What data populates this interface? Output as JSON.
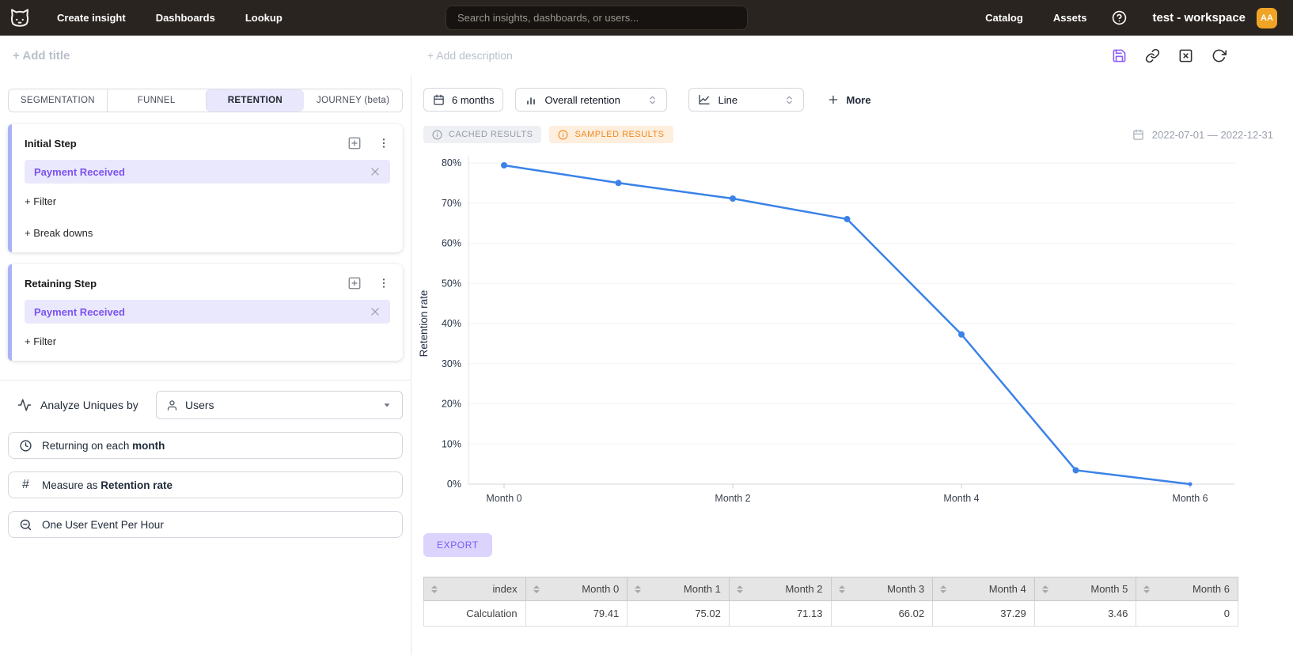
{
  "topnav": {
    "nav_left": [
      "Create insight",
      "Dashboards",
      "Lookup"
    ],
    "search_placeholder": "Search insights, dashboards, or users...",
    "nav_right": [
      "Catalog",
      "Assets"
    ],
    "workspace": "test - workspace",
    "avatar_initials": "AA"
  },
  "toolbar": {
    "add_title": "+ Add title",
    "add_description": "+ Add description",
    "icons": [
      "save-icon",
      "link-icon",
      "clear-square-icon",
      "refresh-icon"
    ]
  },
  "sidebar": {
    "tabs": [
      {
        "label": "SEGMENTATION",
        "active": false
      },
      {
        "label": "FUNNEL",
        "active": false
      },
      {
        "label": "RETENTION",
        "active": true
      },
      {
        "label": "JOURNEY (beta)",
        "active": false
      }
    ],
    "initial_step": {
      "title": "Initial Step",
      "event": "Payment Received",
      "filter_label": "+ Filter",
      "breakdowns_label": "+ Break downs"
    },
    "retaining_step": {
      "title": "Retaining Step",
      "event": "Payment Received",
      "filter_label": "+ Filter"
    },
    "analyze": {
      "label": "Analyze Uniques by",
      "value": "Users"
    },
    "options": [
      {
        "icon": "clock",
        "prefix": "Returning on each ",
        "bold": "month"
      },
      {
        "icon": "hash",
        "prefix": "Measure as ",
        "bold": "Retention rate"
      },
      {
        "icon": "zoom-out",
        "prefix": "One User Event Per Hour",
        "bold": ""
      }
    ]
  },
  "controls": {
    "date_range_button": "6 months",
    "metric_select": "Overall retention",
    "chart_type_select": "Line",
    "more_label": "More"
  },
  "status": {
    "cached_badge": "CACHED RESULTS",
    "sampled_badge": "SAMPLED RESULTS",
    "date_range": "2022-07-01 — 2022-12-31"
  },
  "chart_data": {
    "type": "line",
    "categories": [
      "Month 0",
      "Month 1",
      "Month 2",
      "Month 3",
      "Month 4",
      "Month 5",
      "Month 6"
    ],
    "series": [
      {
        "name": "Retention rate",
        "values": [
          79.41,
          75.02,
          71.13,
          66.02,
          37.29,
          3.46,
          0
        ]
      }
    ],
    "ylabel": "Retention rate",
    "xlabel": "",
    "ylim": [
      0,
      80
    ],
    "ytick_step": 10,
    "ytick_format": "percent",
    "x_ticks_shown": [
      0,
      2,
      4,
      6
    ],
    "grid": true,
    "legend": false,
    "line_color": "#3a82e8"
  },
  "export_label": "EXPORT",
  "table": {
    "headers": [
      "index",
      "Month 0",
      "Month 1",
      "Month 2",
      "Month 3",
      "Month 4",
      "Month 5",
      "Month 6"
    ],
    "rows": [
      [
        "Calculation",
        "79.41",
        "75.02",
        "71.13",
        "66.02",
        "37.29",
        "3.46",
        "0"
      ]
    ]
  },
  "colors": {
    "accent_purple": "#7b52f0",
    "accent_purple_bg": "#eae8fc",
    "card_strip": "#aab3f6",
    "active_tab_bg": "#e8e7fb",
    "line_blue": "#3a82e8",
    "badge_orange": "#f08a1d",
    "badge_orange_bg": "#fdeedd",
    "avatar_orange": "#f0a426",
    "nav_bg": "#2a2420",
    "export_bg": "#dcd4fc"
  }
}
